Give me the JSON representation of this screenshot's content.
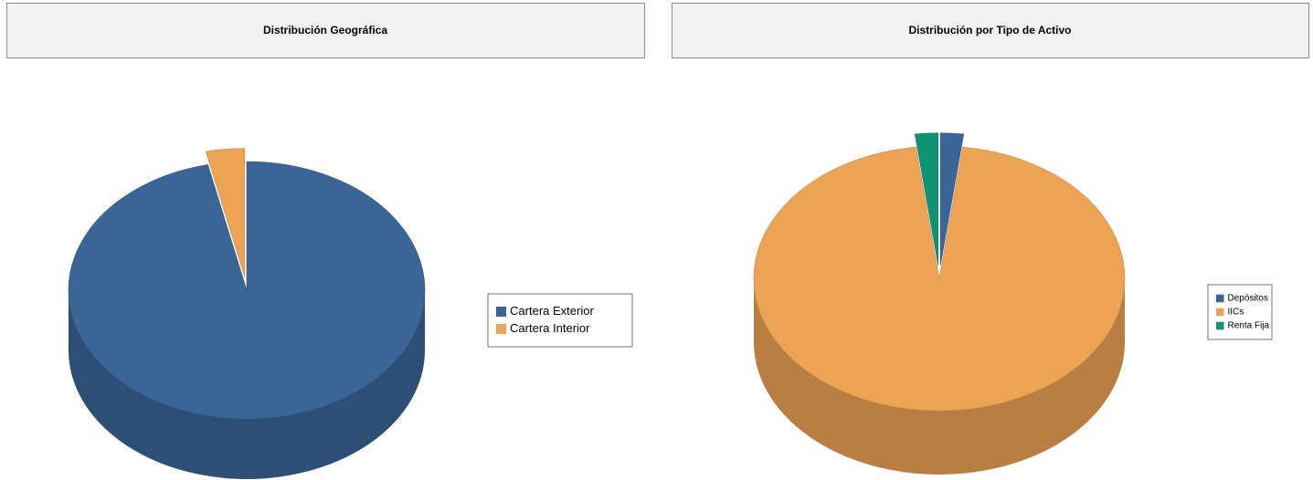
{
  "chart_data": [
    {
      "type": "pie",
      "title": "Distribución Geográfica",
      "categories": [
        "Cartera Exterior",
        "Cartera Interior"
      ],
      "values": [
        96.5,
        3.5
      ],
      "colors": [
        "#3a6596",
        "#eda354"
      ]
    },
    {
      "type": "pie",
      "title": "Distribución por Tipo de Activo",
      "categories": [
        "Depósitos",
        "IICs",
        "Renta Fija"
      ],
      "values": [
        2,
        96,
        2
      ],
      "colors": [
        "#3a6596",
        "#eda354",
        "#0e9473"
      ]
    }
  ]
}
